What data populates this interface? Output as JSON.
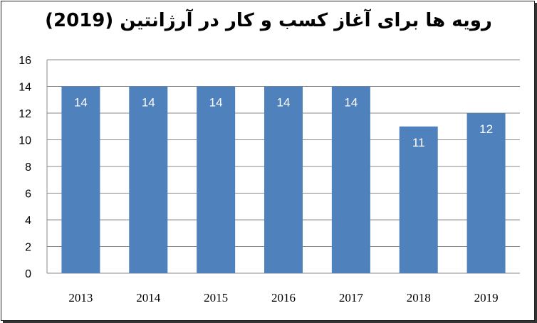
{
  "chart_data": {
    "type": "bar",
    "title": "رویه ها برای آغاز کسب و کار در آرژانتین (2019)",
    "categories": [
      "2013",
      "2014",
      "2015",
      "2016",
      "2017",
      "2018",
      "2019"
    ],
    "values": [
      14,
      14,
      14,
      14,
      14,
      11,
      12
    ],
    "ylim": [
      0,
      16
    ],
    "yticks": [
      0,
      2,
      4,
      6,
      8,
      10,
      12,
      14,
      16
    ],
    "grid": true,
    "legend": "none",
    "bar_color": "#4f81bd",
    "grid_color": "#888888"
  }
}
